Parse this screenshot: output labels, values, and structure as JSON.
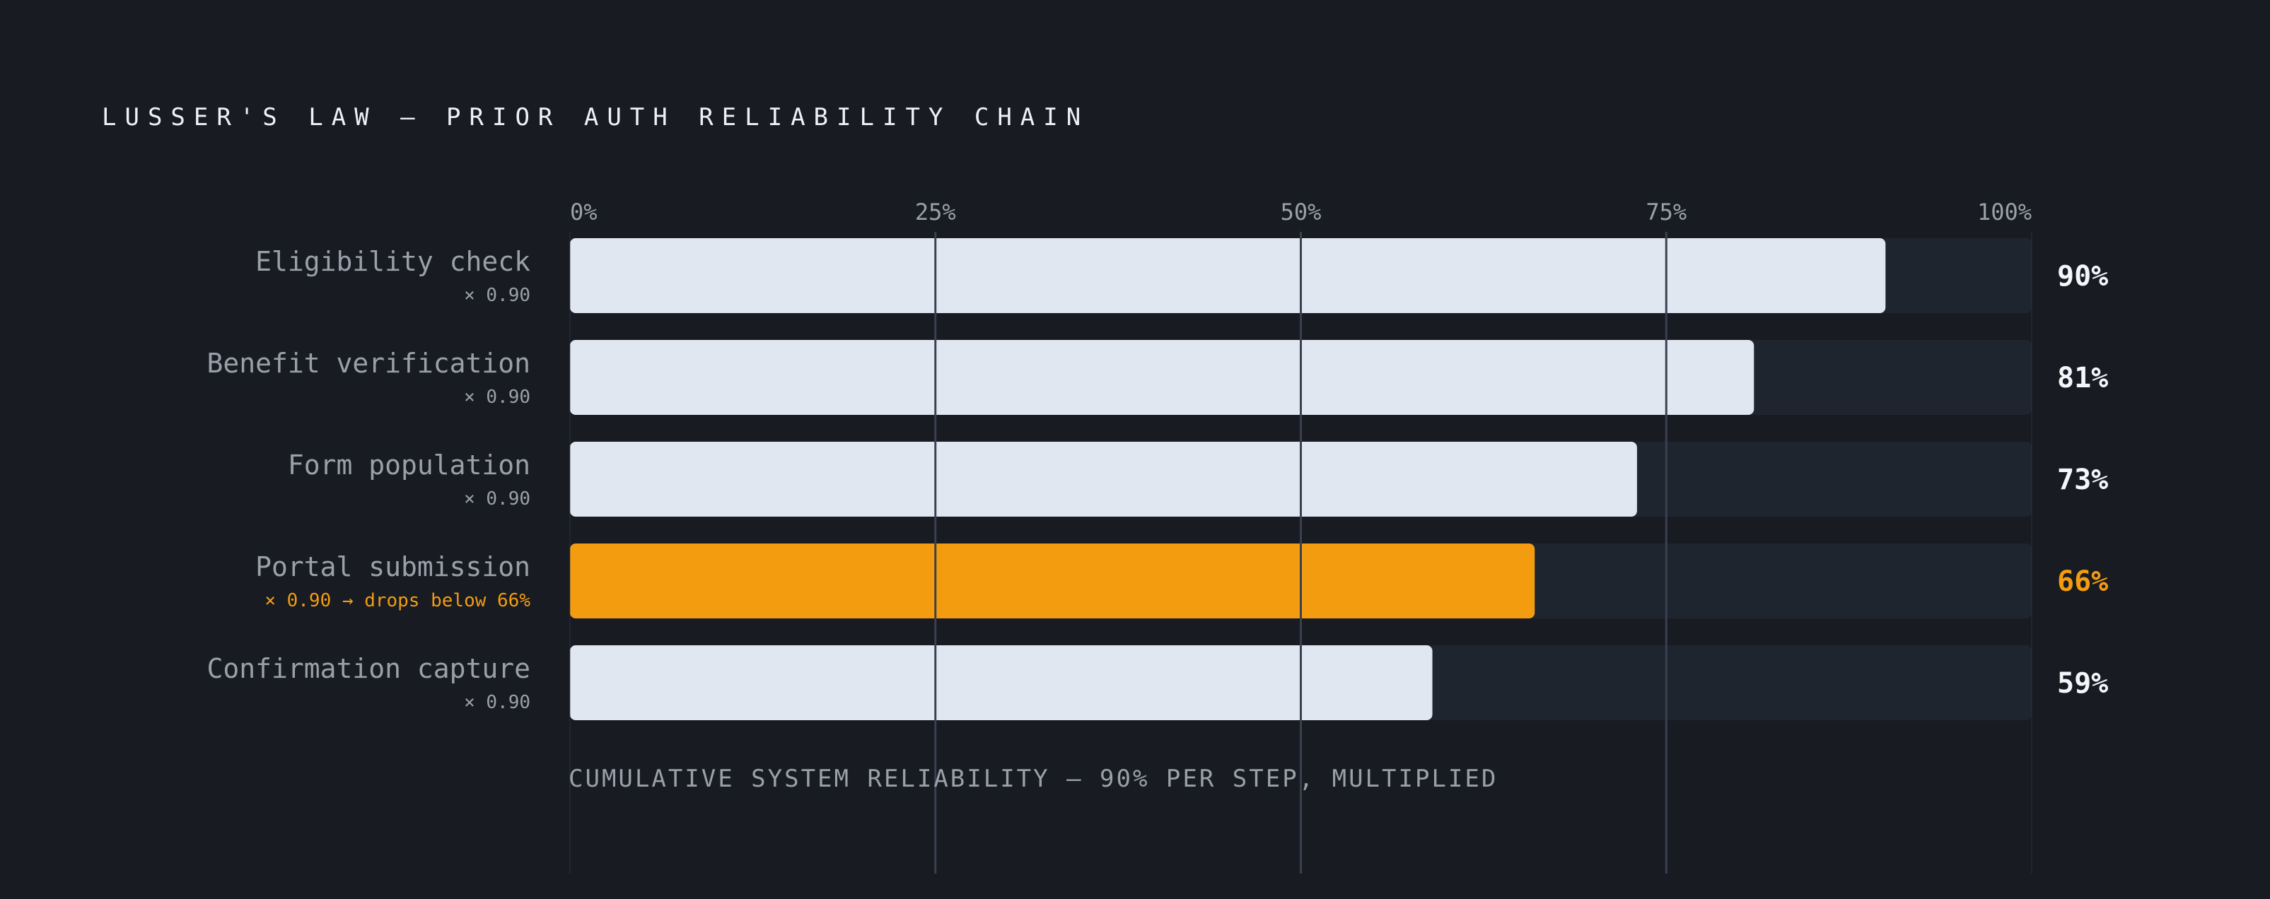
{
  "page": {
    "title": "LUSSER'S LAW — PRIOR AUTH RELIABILITY CHAIN",
    "footer": "CUMULATIVE SYSTEM RELIABILITY — 90% PER STEP, MULTIPLIED"
  },
  "colors": {
    "background": "#181b22",
    "track": "#1f252e",
    "bar": "#e1e7f0",
    "highlight": "#f39c0f",
    "label": "#9aa0aa",
    "value": "#f4f6f9",
    "gridline": "#3a4050"
  },
  "chart_data": {
    "type": "bar",
    "orientation": "horizontal",
    "xlim": [
      0,
      100
    ],
    "x_ticks": [
      "0%",
      "25%",
      "50%",
      "75%",
      "100%"
    ],
    "x_tick_values": [
      0,
      25,
      50,
      75,
      100
    ],
    "grid": true,
    "categories": [
      "Eligibility check",
      "Benefit verification",
      "Form population",
      "Portal submission",
      "Confirmation capture"
    ],
    "sublabels": [
      "× 0.90",
      "× 0.90",
      "× 0.90",
      "× 0.90 → drops below 66%",
      "× 0.90"
    ],
    "values": [
      90,
      81,
      73,
      66,
      59
    ],
    "value_labels": [
      "90%",
      "81%",
      "73%",
      "66%",
      "59%"
    ],
    "highlight_index": 3
  }
}
